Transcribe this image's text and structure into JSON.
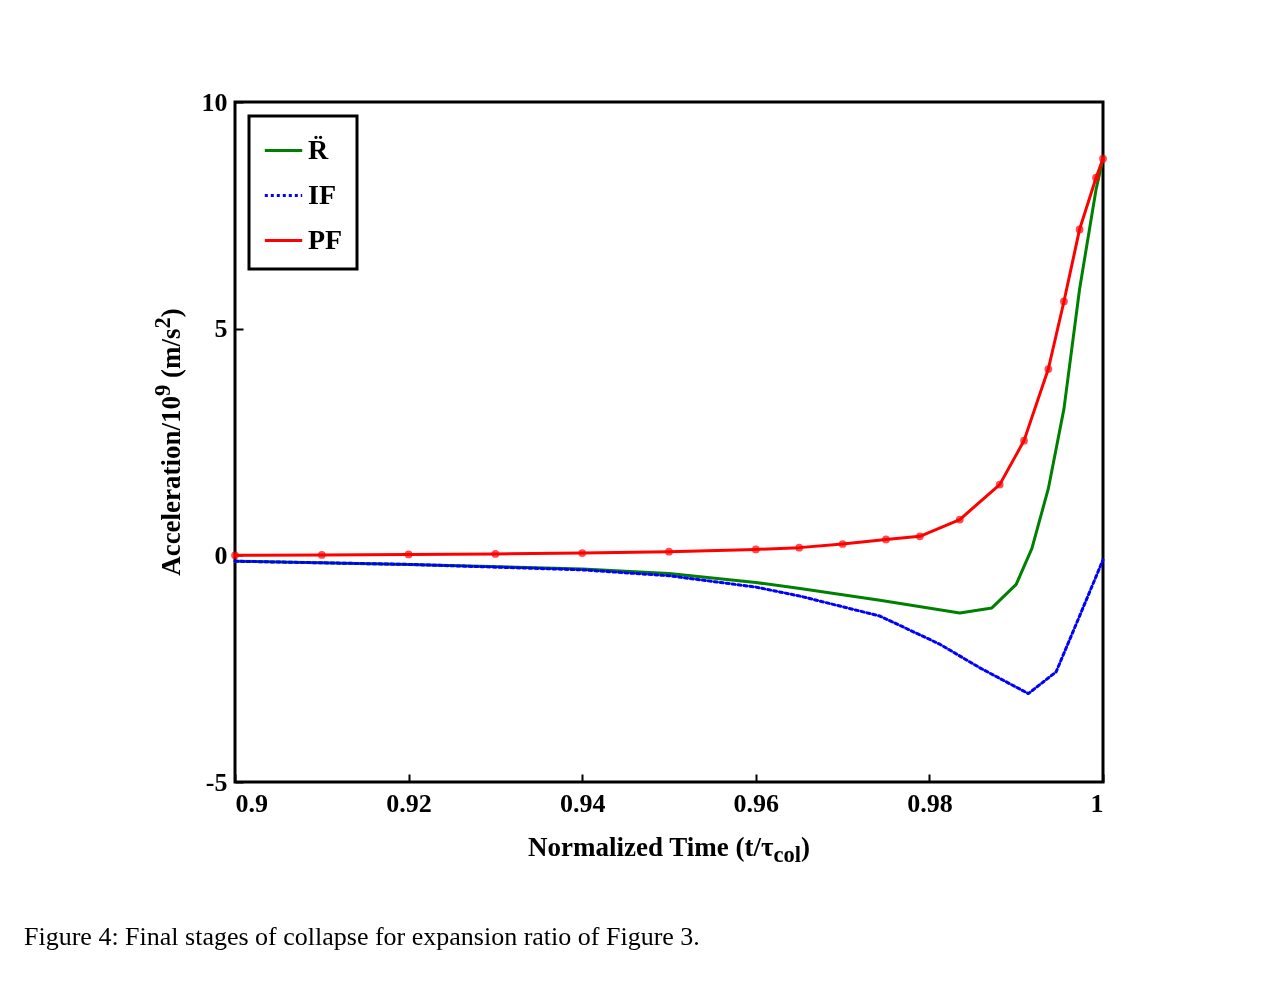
{
  "chart_data": {
    "type": "line",
    "xlabel": "Normalized Time (t/τ$_{col}$)",
    "ylabel": "Acceleration/10$^{9}$ (m/s$^{2}$)",
    "xlim": [
      0.9,
      1
    ],
    "xticks": [
      0.9,
      0.92,
      0.94,
      0.96,
      0.98,
      1
    ],
    "ylim": [
      -5,
      10
    ],
    "yticks": [
      -5,
      0,
      5,
      10
    ],
    "grid": false,
    "legend": "top left",
    "annotations": [
      "Figure 4: Final stages of collapse for expansion ratio of Figure 3."
    ],
    "series": [
      {
        "name": "R̈",
        "color": "#008000",
        "line_style": "solid",
        "x": [
          0.9,
          0.92,
          0.94,
          0.95,
          0.96,
          0.9651,
          0.9743,
          0.9835,
          0.9872,
          0.99,
          0.9918,
          0.9937,
          0.9955,
          0.9973,
          0.9992,
          1.0
        ],
        "values": [
          -0.13,
          -0.2,
          -0.3,
          -0.4,
          -0.6,
          -0.73,
          -0.99,
          -1.27,
          -1.16,
          -0.64,
          0.15,
          1.47,
          3.23,
          5.87,
          8.07,
          8.75
        ]
      },
      {
        "name": "IF",
        "color": "#0000ff",
        "line_style": "dotted",
        "x": [
          0.9,
          0.92,
          0.94,
          0.95,
          0.96,
          0.9651,
          0.9743,
          0.9812,
          0.9858,
          0.9914,
          0.9946,
          0.9973,
          1.0
        ],
        "values": [
          -0.13,
          -0.2,
          -0.32,
          -0.45,
          -0.7,
          -0.9,
          -1.34,
          -1.96,
          -2.48,
          -3.05,
          -2.57,
          -1.34,
          -0.1
        ]
      },
      {
        "name": "PF",
        "color": "#ff0000",
        "line_style": "solid",
        "marker": "circle",
        "x": [
          0.9,
          0.91,
          0.92,
          0.93,
          0.94,
          0.95,
          0.96,
          0.965,
          0.97,
          0.975,
          0.9789,
          0.9835,
          0.9881,
          0.9909,
          0.9937,
          0.9955,
          0.9973,
          0.9992,
          1.0
        ],
        "values": [
          0.0,
          0.01,
          0.02,
          0.03,
          0.05,
          0.08,
          0.13,
          0.17,
          0.25,
          0.35,
          0.42,
          0.79,
          1.56,
          2.53,
          4.11,
          5.6,
          7.19,
          8.33,
          8.75
        ]
      }
    ]
  }
}
